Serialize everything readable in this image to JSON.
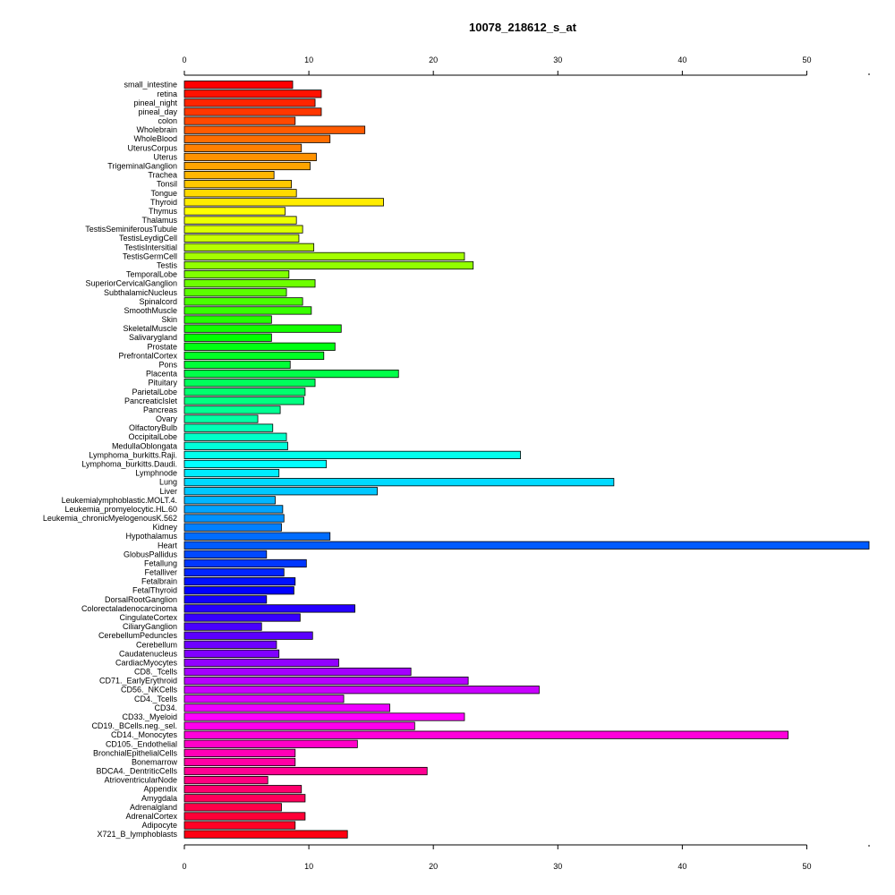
{
  "chart_data": {
    "type": "bar",
    "orientation": "horizontal",
    "title": "10078_218612_s_at",
    "xlabel": "",
    "ylabel": "",
    "xlim": [
      0,
      55
    ],
    "xticks": [
      0,
      10,
      20,
      30,
      40,
      50
    ],
    "grid": false,
    "legend": "none",
    "color_scheme": "rainbow (red → magenta → blue → cyan → green → yellow → orange → red)",
    "categories": [
      "small_intestine",
      "retina",
      "pineal_night",
      "pineal_day",
      "colon",
      "Wholebrain",
      "WholeBlood",
      "UterusCorpus",
      "Uterus",
      "TrigeminalGanglion",
      "Trachea",
      "Tonsil",
      "Tongue",
      "Thyroid",
      "Thymus",
      "Thalamus",
      "TestisSeminiferousTubule",
      "TestisLeydigCell",
      "TestisIntersitial",
      "TestisGermCell",
      "Testis",
      "TemporalLobe",
      "SuperiorCervicalGanglion",
      "SubthalamicNucleus",
      "Spinalcord",
      "SmoothMuscle",
      "Skin",
      "SkeletalMuscle",
      "Salivarygland",
      "Prostate",
      "PrefrontalCortex",
      "Pons",
      "Placenta",
      "Pituitary",
      "ParietalLobe",
      "PancreaticIslet",
      "Pancreas",
      "Ovary",
      "OlfactoryBulb",
      "OccipitalLobe",
      "MedullaOblongata",
      "Lymphoma_burkitts.Raji.",
      "Lymphoma_burkitts.Daudi.",
      "Lymphnode",
      "Lung",
      "Liver",
      "Leukemialymphoblastic.MOLT.4.",
      "Leukemia_promyelocytic.HL.60",
      "Leukemia_chronicMyelogenousK.562",
      "Kidney",
      "Hypothalamus",
      "Heart",
      "GlobusPallidus",
      "Fetallung",
      "Fetalliver",
      "Fetalbrain",
      "FetalThyroid",
      "DorsalRootGanglion",
      "Colorectaladenocarcinoma",
      "CingulateCortex",
      "CiliaryGanglion",
      "CerebellumPeduncles",
      "Cerebellum",
      "Caudatenucleus",
      "CardiacMyocytes",
      "CD8._Tcells",
      "CD71._EarlyErythroid",
      "CD56._NKCells",
      "CD4._Tcells",
      "CD34.",
      "CD33._Myeloid",
      "CD19._BCells.neg._sel.",
      "CD14._Monocytes",
      "CD105._Endothelial",
      "BronchialEpithelialCells",
      "Bonemarrow",
      "BDCA4._DentriticCells",
      "AtrioventricularNode",
      "Appendix",
      "Amygdala",
      "Adrenalgland",
      "AdrenalCortex",
      "Adipocyte",
      "X721_B_lymphoblasts"
    ],
    "values": [
      8.7,
      11.0,
      10.5,
      11.0,
      8.9,
      14.5,
      11.7,
      9.4,
      10.6,
      10.1,
      7.2,
      8.6,
      9.0,
      16.0,
      8.1,
      9.0,
      9.5,
      9.2,
      10.4,
      22.5,
      23.2,
      8.4,
      10.5,
      8.2,
      9.5,
      10.2,
      7.0,
      12.6,
      7.0,
      12.1,
      11.2,
      8.5,
      17.2,
      10.5,
      9.7,
      9.6,
      7.7,
      5.9,
      7.1,
      8.2,
      8.3,
      27.0,
      11.4,
      7.6,
      34.5,
      15.5,
      7.3,
      7.9,
      8.0,
      7.8,
      11.7,
      55.0,
      6.6,
      9.8,
      8.0,
      8.9,
      8.8,
      6.6,
      13.7,
      9.3,
      6.2,
      10.3,
      7.4,
      7.6,
      12.4,
      18.2,
      22.8,
      28.5,
      12.8,
      16.5,
      22.5,
      18.5,
      48.5,
      13.9,
      8.9,
      8.9,
      19.5,
      6.7,
      9.4,
      9.7,
      7.8,
      9.7,
      8.9,
      13.1
    ]
  }
}
